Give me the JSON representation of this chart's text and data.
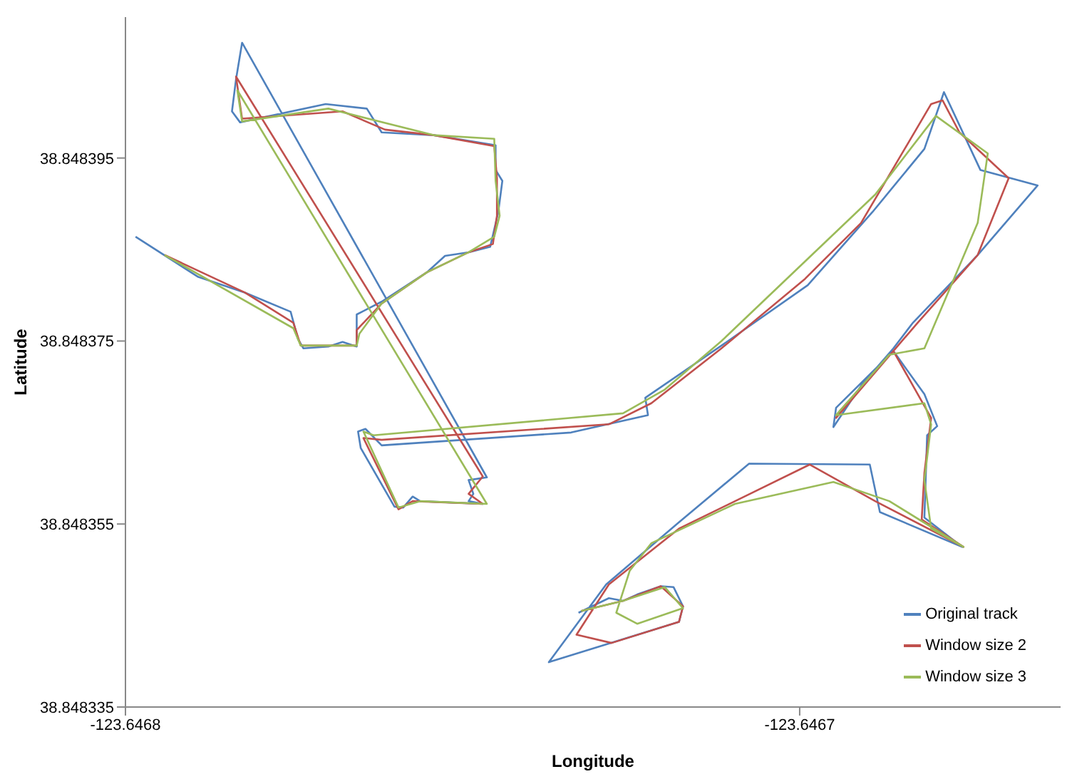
{
  "chart_data": {
    "type": "line",
    "xlabel": "Longitude",
    "ylabel": "Latitude",
    "xlim": [
      -123.6468,
      -123.6466613
    ],
    "ylim": [
      38.848335,
      38.8484104
    ],
    "xticks": [
      -123.6468,
      -123.6467
    ],
    "yticks": [
      38.848335,
      38.848355,
      38.848375,
      38.848395
    ],
    "legend": "bottom right",
    "marker": "none",
    "line_style": "solid",
    "series": [
      {
        "name": "Original track",
        "color": "#4f81bd",
        "x": [
          -123.6467985,
          -123.6467892,
          -123.6467823,
          -123.6467755,
          -123.6467744,
          -123.6467736,
          -123.6467699,
          -123.6467678,
          -123.6467657,
          -123.6467657,
          -123.646762,
          -123.6467553,
          -123.6467526,
          -123.6467491,
          -123.6467459,
          -123.6467453,
          -123.6467447,
          -123.6467441,
          -123.6467451,
          -123.6467451,
          -123.6467543,
          -123.646762,
          -123.6467642,
          -123.6467703,
          -123.646783,
          -123.6467842,
          -123.6467836,
          -123.6467827,
          -123.6467464,
          -123.6467491,
          -123.6467484,
          -123.6467491,
          -123.646747,
          -123.6467563,
          -123.6467574,
          -123.6467588,
          -123.6467601,
          -123.6467651,
          -123.6467655,
          -123.6467644,
          -123.646762,
          -123.6467339,
          -123.6467225,
          -123.6467229,
          -123.6467116,
          -123.6466988,
          -123.6466892,
          -123.6466815,
          -123.6466786,
          -123.6466732,
          -123.6466647,
          -123.6466736,
          -123.6466832,
          -123.6466861,
          -123.6466909,
          -123.646695,
          -123.6466946,
          -123.6466861,
          -123.6466815,
          -123.6466796,
          -123.6466811,
          -123.6466813,
          -123.6466815,
          -123.6466759,
          -123.6466881,
          -123.6466896,
          -123.6467075,
          -123.6467179,
          -123.6467287,
          -123.6467372,
          -123.6467179,
          -123.6467173,
          -123.6467187,
          -123.6467206,
          -123.6467241,
          -123.6467262,
          -123.6467283,
          -123.6467328
        ],
        "values": [
          38.8483864,
          38.848382,
          38.8483803,
          38.8483782,
          38.8483752,
          38.8483742,
          38.8483744,
          38.8483749,
          38.8483744,
          38.8483779,
          38.8483793,
          38.8483825,
          38.8483843,
          38.8483847,
          38.8483853,
          38.8483872,
          38.8483891,
          38.8483925,
          38.8483937,
          38.8483964,
          38.8483975,
          38.8483978,
          38.8484004,
          38.8484009,
          38.8483989,
          38.8484001,
          38.8484036,
          38.8484076,
          38.8483601,
          38.8483598,
          38.8483583,
          38.8483575,
          38.8483572,
          38.8483575,
          38.848358,
          38.8483568,
          38.8483569,
          38.8483633,
          38.8483651,
          38.8483654,
          38.8483636,
          38.848365,
          38.8483669,
          38.8483688,
          38.8483745,
          38.8483811,
          38.8483891,
          38.848396,
          38.8484022,
          38.8483937,
          38.848392,
          38.8483844,
          38.848377,
          38.8483742,
          38.8483701,
          38.8483656,
          38.8483677,
          38.8483739,
          38.8483692,
          38.8483657,
          38.8483647,
          38.8483601,
          38.8483557,
          38.8483525,
          38.8483563,
          38.8483615,
          38.8483616,
          38.8483552,
          38.8483484,
          38.8483399,
          38.8483443,
          38.848346,
          38.8483481,
          38.8483482,
          38.8483473,
          38.8483466,
          38.8483469,
          38.8483453
        ]
      },
      {
        "name": "Window size 2",
        "color": "#c0504d",
        "x": [
          -123.6467942,
          -123.6467823,
          -123.6467751,
          -123.646774,
          -123.6467657,
          -123.6467657,
          -123.646762,
          -123.6467553,
          -123.6467491,
          -123.6467455,
          -123.6467449,
          -123.6467449,
          -123.6467453,
          -123.6467543,
          -123.6467615,
          -123.6467678,
          -123.6467827,
          -123.6467836,
          -123.646747,
          -123.6467491,
          -123.646747,
          -123.6467574,
          -123.6467595,
          -123.6467647,
          -123.646762,
          -123.6467283,
          -123.646722,
          -123.6467116,
          -123.6466992,
          -123.6466909,
          -123.6466805,
          -123.6466788,
          -123.6466763,
          -123.646669,
          -123.6466736,
          -123.6466825,
          -123.6466946,
          -123.646694,
          -123.6466861,
          -123.6466805,
          -123.6466815,
          -123.6466819,
          -123.6466757,
          -123.6466888,
          -123.6466985,
          -123.6467179,
          -123.6467283,
          -123.6467331,
          -123.6467279,
          -123.6467179,
          -123.6467173,
          -123.6467206,
          -123.6467262,
          -123.6467324
        ],
        "values": [
          38.8483844,
          38.8483803,
          38.848377,
          38.8483745,
          38.8483745,
          38.8483762,
          38.8483791,
          38.8483825,
          38.8483847,
          38.8483856,
          38.8483887,
          38.8483928,
          38.8483963,
          38.8483975,
          38.8483981,
          38.8484001,
          38.8483993,
          38.8484039,
          38.8483602,
          38.8483583,
          38.8483572,
          38.8483575,
          38.8483566,
          38.8483644,
          38.8483642,
          38.8483659,
          38.8483682,
          38.8483742,
          38.8483818,
          38.8483879,
          38.8484009,
          38.8484013,
          38.8483978,
          38.8483928,
          38.8483844,
          38.848377,
          38.8483666,
          38.8483674,
          38.8483739,
          38.8483666,
          38.8483606,
          38.8483555,
          38.8483525,
          38.8483575,
          38.8483615,
          38.8483545,
          38.8483484,
          38.8483429,
          38.848342,
          38.8483443,
          38.848346,
          38.8483482,
          38.8483466,
          38.8483455
        ]
      },
      {
        "name": "Window size 3",
        "color": "#9bbb59",
        "x": [
          -123.6467942,
          -123.6467751,
          -123.646774,
          -123.6467657,
          -123.6467653,
          -123.646762,
          -123.6467553,
          -123.6467491,
          -123.6467453,
          -123.6467445,
          -123.6467451,
          -123.6467453,
          -123.6467543,
          -123.6467699,
          -123.6467827,
          -123.6467834,
          -123.6467464,
          -123.6467563,
          -123.6467595,
          -123.6467647,
          -123.6467632,
          -123.6467262,
          -123.64672,
          -123.6467116,
          -123.6466888,
          -123.6466798,
          -123.6466721,
          -123.6466736,
          -123.6466815,
          -123.6466867,
          -123.6466946,
          -123.6466815,
          -123.6466805,
          -123.6466815,
          -123.6466805,
          -123.6466757,
          -123.6466867,
          -123.646695,
          -123.6467096,
          -123.646722,
          -123.6467252,
          -123.6467272,
          -123.6467241,
          -123.6467173,
          -123.64672,
          -123.6467262,
          -123.6467324
        ],
        "values": [
          38.8483844,
          38.8483764,
          38.8483745,
          38.8483745,
          38.8483758,
          38.8483791,
          38.8483825,
          38.8483847,
          38.8483864,
          38.8483887,
          38.8483925,
          38.8483971,
          38.8483975,
          38.8484004,
          38.848399,
          38.8484024,
          38.8483572,
          38.8483575,
          38.8483568,
          38.8483651,
          38.8483647,
          38.8483671,
          38.8483697,
          38.848375,
          38.848391,
          38.8483996,
          38.8483955,
          38.8483879,
          38.8483742,
          38.8483735,
          38.8483669,
          38.8483682,
          38.8483659,
          38.8483598,
          38.8483545,
          38.8483525,
          38.8483575,
          38.8483596,
          38.8483572,
          38.8483529,
          38.8483499,
          38.8483453,
          38.8483441,
          38.8483458,
          38.8483481,
          38.8483466,
          38.8483455
        ]
      }
    ]
  }
}
